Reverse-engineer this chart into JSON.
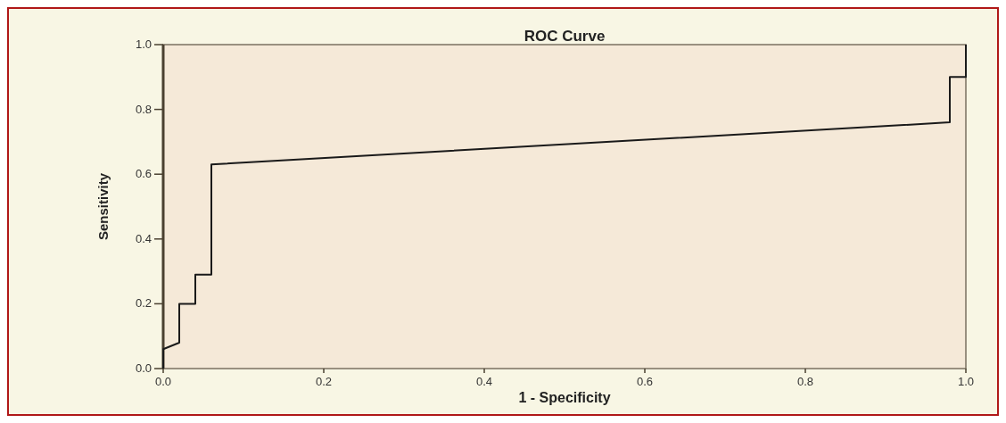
{
  "chart_data": {
    "type": "line",
    "title": "ROC Curve",
    "xlabel": "1 - Specificity",
    "ylabel": "Sensitivity",
    "x": [
      0,
      0,
      0.02,
      0.02,
      0.04,
      0.04,
      0.06,
      0.06,
      0.98,
      0.98,
      1,
      1
    ],
    "series": [
      {
        "color": "#1a1a1a",
        "values": [
          0,
          0.06,
          0.08,
          0.2,
          0.2,
          0.29,
          0.29,
          0.63,
          0.76,
          0.9,
          0.9,
          1
        ]
      }
    ],
    "xlim": [
      0,
      1
    ],
    "ylim": [
      0,
      1
    ],
    "xticks": [
      {
        "value": 0,
        "label": "0.0"
      },
      {
        "value": 0.2,
        "label": "0.2"
      },
      {
        "value": 0.4,
        "label": "0.4"
      },
      {
        "value": 0.6,
        "label": "0.6"
      },
      {
        "value": 0.8,
        "label": "0.8"
      },
      {
        "value": 1,
        "label": "1.0"
      }
    ],
    "yticks": [
      {
        "value": 0,
        "label": "0.0"
      },
      {
        "value": 0.2,
        "label": "0.2"
      },
      {
        "value": 0.4,
        "label": "0.4"
      },
      {
        "value": 0.6,
        "label": "0.6"
      },
      {
        "value": 0.8,
        "label": "0.8"
      },
      {
        "value": 1,
        "label": "1.0"
      }
    ],
    "marker": "none",
    "line_style": "solid"
  }
}
